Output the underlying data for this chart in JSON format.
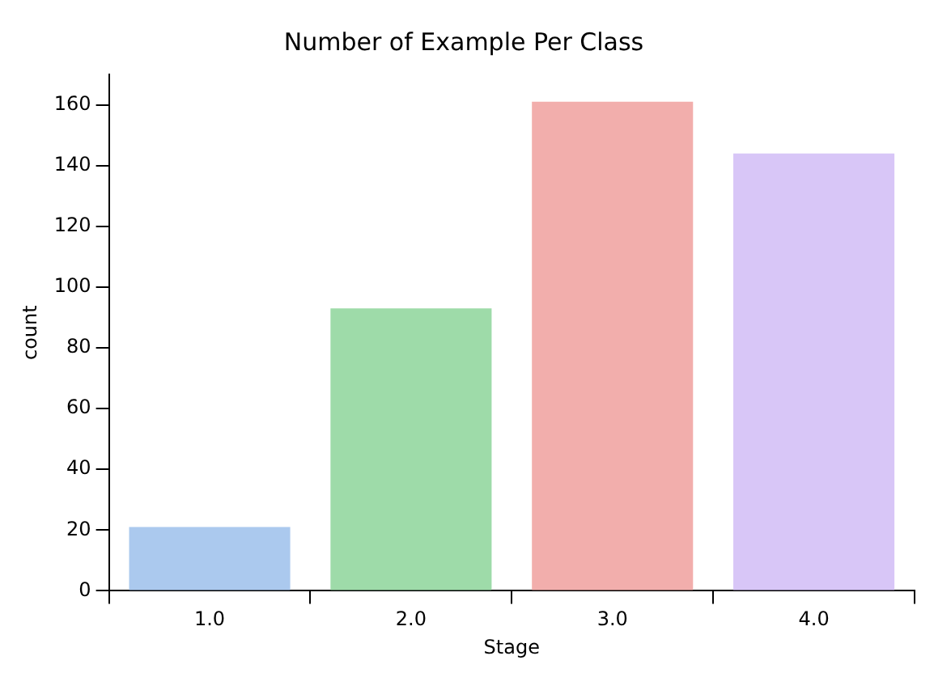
{
  "chart_data": {
    "type": "bar",
    "title": "Number of Example Per Class",
    "xlabel": "Stage",
    "ylabel": "count",
    "categories": [
      "1.0",
      "2.0",
      "3.0",
      "4.0"
    ],
    "values": [
      21,
      93,
      161,
      144
    ],
    "colors": [
      "#abc9ee",
      "#9edba9",
      "#f2aeac",
      "#d8c6f7"
    ],
    "ylim": [
      0,
      170
    ],
    "yticks": [
      0,
      20,
      40,
      60,
      80,
      100,
      120,
      140,
      160
    ]
  }
}
